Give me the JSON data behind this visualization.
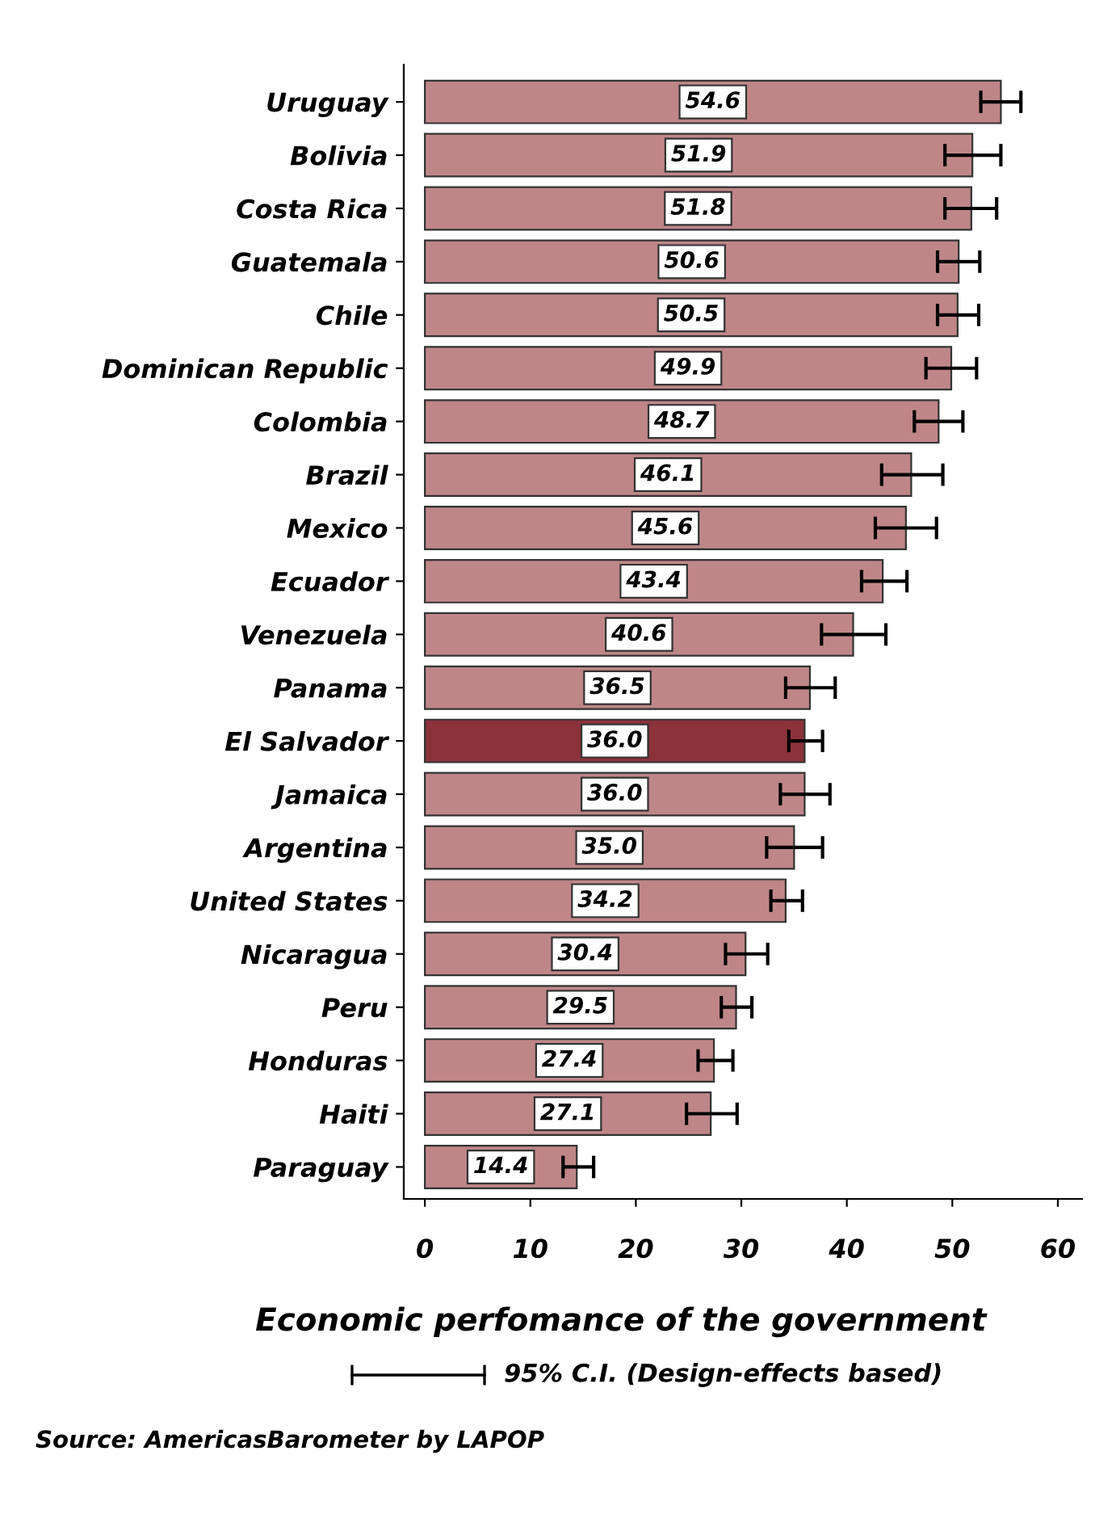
{
  "chart_data": {
    "type": "bar",
    "orientation": "horizontal",
    "xlabel": "Economic perfomance of the government",
    "categories": [
      "Uruguay",
      "Bolivia",
      "Costa Rica",
      "Guatemala",
      "Chile",
      "Dominican Republic",
      "Colombia",
      "Brazil",
      "Mexico",
      "Ecuador",
      "Venezuela",
      "Panama",
      "El Salvador",
      "Jamaica",
      "Argentina",
      "United States",
      "Nicaragua",
      "Peru",
      "Honduras",
      "Haiti",
      "Paraguay"
    ],
    "values": [
      54.6,
      51.9,
      51.8,
      50.6,
      50.5,
      49.9,
      48.7,
      46.1,
      45.6,
      43.4,
      40.6,
      36.5,
      36.0,
      36.0,
      35.0,
      34.2,
      30.4,
      29.5,
      27.4,
      27.1,
      14.4
    ],
    "value_labels": [
      "54.6",
      "51.9",
      "51.8",
      "50.6",
      "50.5",
      "49.9",
      "48.7",
      "46.1",
      "45.6",
      "43.4",
      "40.6",
      "36.5",
      "36.0",
      "36.0",
      "35.0",
      "34.2",
      "30.4",
      "29.5",
      "27.4",
      "27.1",
      "14.4"
    ],
    "errors": [
      [
        52.7,
        56.5
      ],
      [
        49.3,
        54.6
      ],
      [
        49.3,
        54.2
      ],
      [
        48.6,
        52.6
      ],
      [
        48.6,
        52.5
      ],
      [
        47.5,
        52.3
      ],
      [
        46.4,
        51.0
      ],
      [
        43.3,
        49.1
      ],
      [
        42.7,
        48.5
      ],
      [
        41.4,
        45.7
      ],
      [
        37.6,
        43.7
      ],
      [
        34.2,
        38.9
      ],
      [
        34.5,
        37.7
      ],
      [
        33.7,
        38.4
      ],
      [
        32.4,
        37.7
      ],
      [
        32.8,
        35.8
      ],
      [
        28.5,
        32.5
      ],
      [
        28.1,
        31.0
      ],
      [
        25.9,
        29.2
      ],
      [
        24.8,
        29.6
      ],
      [
        13.1,
        16.0
      ]
    ],
    "colors": [
      "#bf8688",
      "#bf8688",
      "#bf8688",
      "#bf8688",
      "#bf8688",
      "#bf8688",
      "#bf8688",
      "#bf8688",
      "#bf8688",
      "#bf8688",
      "#bf8688",
      "#bf8688",
      "#8b323b",
      "#bf8688",
      "#bf8688",
      "#bf8688",
      "#bf8688",
      "#bf8688",
      "#bf8688",
      "#bf8688",
      "#bf8688"
    ],
    "xlim": [
      -2,
      62.3
    ],
    "xticks": [
      0,
      10,
      20,
      30,
      40,
      50,
      60
    ],
    "grid": false,
    "annotations": [
      "95% C.I. (Design-effects based)",
      "Source: AmericasBarometer by LAPOP"
    ]
  }
}
